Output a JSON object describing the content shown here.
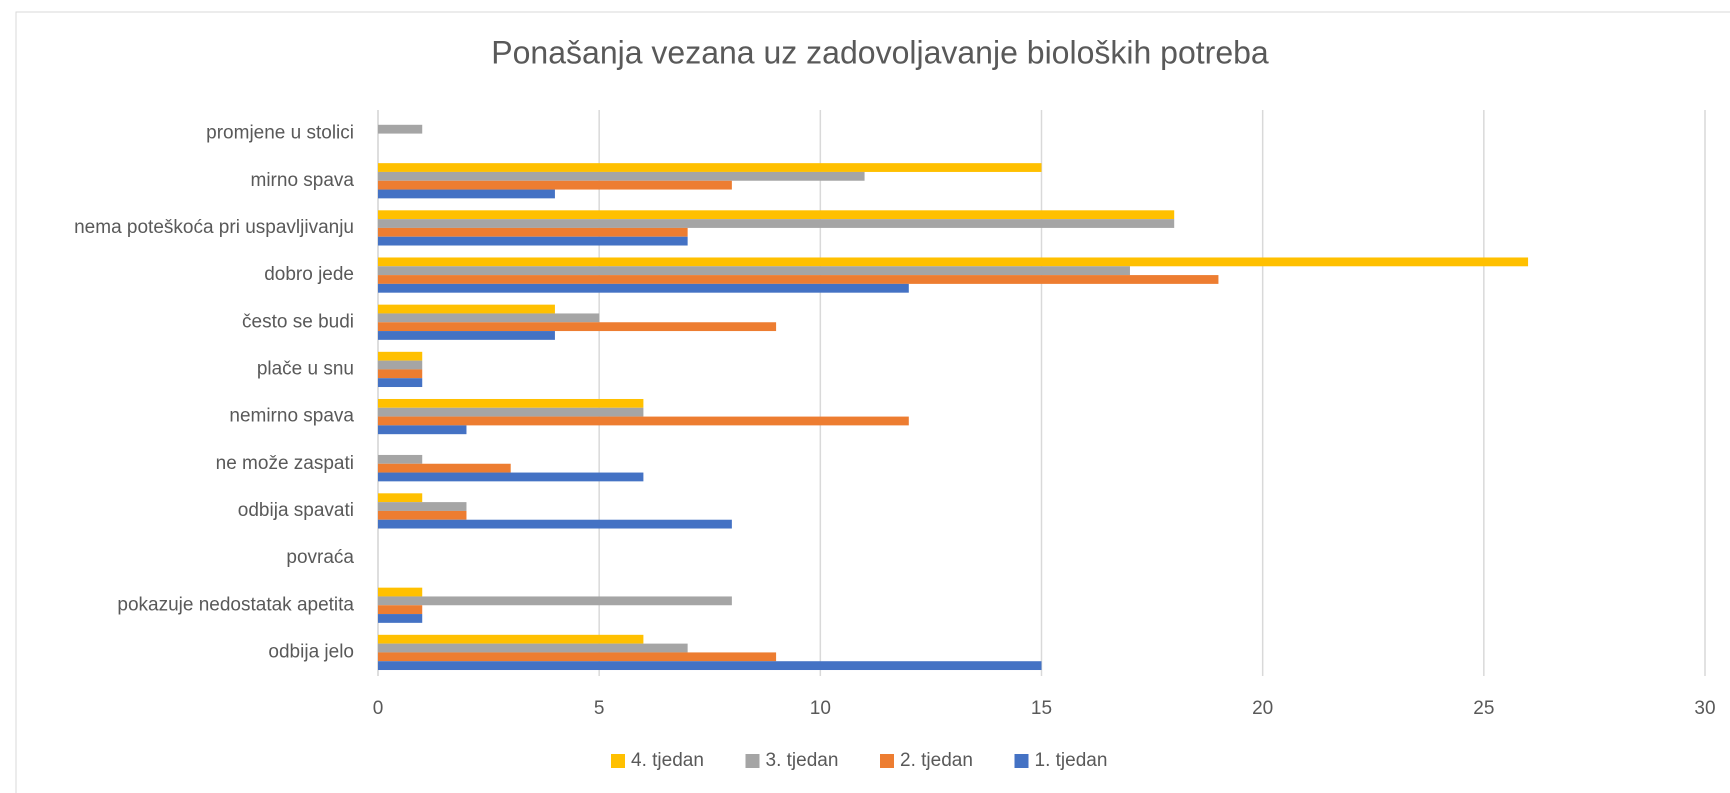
{
  "chart_data": {
    "type": "hbar",
    "title": "Ponašanja vezana uz zadovoljavanje bioloških potreba",
    "categories": [
      "odbija jelo",
      "pokazuje nedostatak apetita",
      "povraća",
      "odbija spavati",
      "ne može zaspati",
      "nemirno spava",
      "plače u snu",
      "često se budi",
      "dobro jede",
      "nema poteškoća pri uspavljivanju",
      "mirno spava",
      "promjene u stolici"
    ],
    "series": [
      {
        "name": "4. tjedan",
        "color": "#ffc000",
        "values": [
          6,
          1,
          0,
          1,
          0,
          6,
          1,
          4,
          26,
          18,
          15,
          0
        ]
      },
      {
        "name": "3. tjedan",
        "color": "#a5a5a5",
        "values": [
          7,
          8,
          0,
          2,
          1,
          6,
          1,
          5,
          17,
          18,
          11,
          1
        ]
      },
      {
        "name": "2. tjedan",
        "color": "#ed7d31",
        "values": [
          9,
          1,
          0,
          2,
          3,
          12,
          1,
          9,
          19,
          7,
          8,
          0
        ]
      },
      {
        "name": "1. tjedan",
        "color": "#4472c4",
        "values": [
          15,
          1,
          0,
          8,
          6,
          2,
          1,
          4,
          12,
          7,
          4,
          0
        ]
      }
    ],
    "xlim": [
      0,
      30
    ],
    "xticks": [
      0,
      5,
      10,
      15,
      20,
      25,
      30
    ],
    "grid": true,
    "legend": "bottom"
  }
}
